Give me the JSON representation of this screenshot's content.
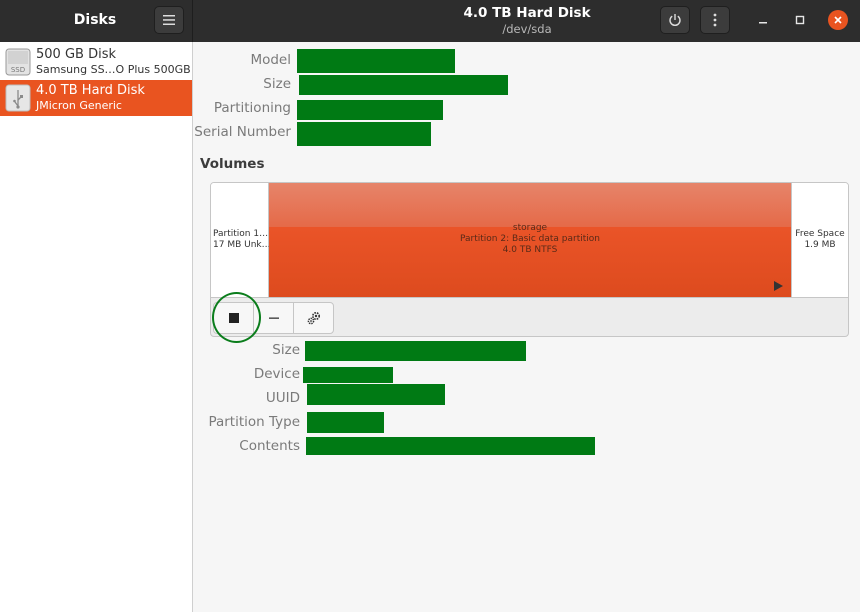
{
  "header": {
    "app_title": "Disks",
    "disk_title": "4.0 TB Hard Disk",
    "disk_device": "/dev/sda",
    "icons": {
      "menu": "hamburger-menu-icon",
      "power": "power-icon",
      "more": "vertical-ellipsis-icon",
      "minimize": "minimize-icon",
      "maximize": "maximize-icon",
      "close": "close-icon"
    }
  },
  "sidebar": {
    "items": [
      {
        "name": "500 GB Disk",
        "subtitle": "Samsung SS…O Plus 500GB",
        "icon": "ssd-icon",
        "icon_text": "SSD",
        "selected": false
      },
      {
        "name": "4.0 TB Hard Disk",
        "subtitle": "JMicron Generic",
        "icon": "usb-drive-icon",
        "selected": true
      }
    ]
  },
  "disk_info": {
    "model_label": "Model",
    "size_label": "Size",
    "partitioning_label": "Partitioning",
    "serial_label": "Serial Number"
  },
  "volumes": {
    "title": "Volumes",
    "partitions": [
      {
        "line1": "Partition 1…",
        "line2": "17 MB Unk…"
      },
      {
        "line1": "storage",
        "line2": "Partition 2: Basic data partition",
        "line3": "4.0 TB NTFS"
      },
      {
        "line1": "Free Space",
        "line2": "1.9 MB"
      }
    ],
    "toolbar": {
      "stop_icon": "stop-icon",
      "remove_icon": "minus-icon",
      "settings_icon": "gears-icon"
    }
  },
  "partition_info": {
    "size_label": "Size",
    "device_label": "Device",
    "uuid_label": "UUID",
    "partition_type_label": "Partition Type",
    "contents_label": "Contents"
  },
  "colors": {
    "accent": "#e95420",
    "header_bg": "#2d2d2d",
    "redaction": "#007a14"
  }
}
